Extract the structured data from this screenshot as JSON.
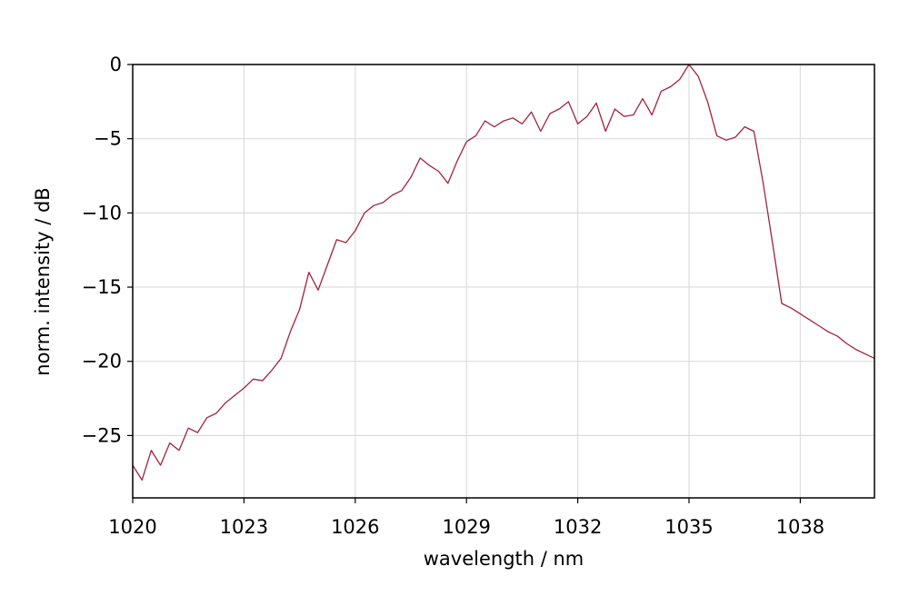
{
  "chart_data": {
    "type": "line",
    "x_label": "wavelength / nm",
    "y_label": "norm. intensity / dB",
    "x": [
      1020,
      1020.25,
      1020.5,
      1020.75,
      1021,
      1021.25,
      1021.5,
      1021.75,
      1022,
      1022.25,
      1022.5,
      1022.75,
      1023,
      1023.25,
      1023.5,
      1023.75,
      1024,
      1024.25,
      1024.5,
      1024.75,
      1025,
      1025.25,
      1025.5,
      1025.75,
      1026,
      1026.25,
      1026.5,
      1026.75,
      1027,
      1027.25,
      1027.5,
      1027.75,
      1028,
      1028.25,
      1028.5,
      1028.75,
      1029,
      1029.25,
      1029.5,
      1029.75,
      1030,
      1030.25,
      1030.5,
      1030.75,
      1031,
      1031.25,
      1031.5,
      1031.75,
      1032,
      1032.25,
      1032.5,
      1032.75,
      1033,
      1033.25,
      1033.5,
      1033.75,
      1034,
      1034.25,
      1034.5,
      1034.75,
      1035,
      1035.25,
      1035.5,
      1035.75,
      1036,
      1036.25,
      1036.5,
      1036.75,
      1037,
      1037.25,
      1037.5,
      1037.75,
      1038,
      1038.25,
      1038.5,
      1038.75,
      1039,
      1039.25,
      1039.5,
      1039.75,
      1040
    ],
    "values": [
      -27,
      -28,
      -26,
      -27,
      -25.5,
      -26,
      -24.5,
      -24.8,
      -23.8,
      -23.5,
      -22.8,
      -22.3,
      -21.8,
      -21.2,
      -21.3,
      -20.6,
      -19.8,
      -18,
      -16.5,
      -14,
      -15.2,
      -13.5,
      -11.8,
      -12,
      -11.2,
      -10,
      -9.5,
      -9.3,
      -8.8,
      -8.5,
      -7.6,
      -6.3,
      -6.8,
      -7.2,
      -8,
      -6.5,
      -5.2,
      -4.8,
      -3.8,
      -4.2,
      -3.8,
      -3.6,
      -4,
      -3.2,
      -4.5,
      -3.3,
      -3,
      -2.5,
      -4,
      -3.5,
      -2.6,
      -4.5,
      -3,
      -3.5,
      -3.4,
      -2.3,
      -3.4,
      -1.8,
      -1.5,
      -1,
      0,
      -0.8,
      -2.5,
      -4.8,
      -5.1,
      -4.9,
      -4.2,
      -4.5,
      -8,
      -12,
      -16.1,
      -16.4,
      -16.8,
      -17.2,
      -17.6,
      -18,
      -18.3,
      -18.8,
      -19.2,
      -19.5,
      -19.8
    ],
    "color": "#a3223f",
    "xlim": [
      1020,
      1040
    ],
    "ylim": [
      -29.2,
      0
    ],
    "xticks": [
      1020,
      1023,
      1026,
      1029,
      1032,
      1035,
      1038
    ],
    "yticks": [
      0,
      {
        "value": -5,
        "label": "−5"
      },
      {
        "value": -10,
        "label": "−10"
      },
      {
        "value": -15,
        "label": "−15"
      },
      {
        "value": -20,
        "label": "−20"
      },
      {
        "value": -25,
        "label": "−25"
      }
    ],
    "grid": true
  }
}
